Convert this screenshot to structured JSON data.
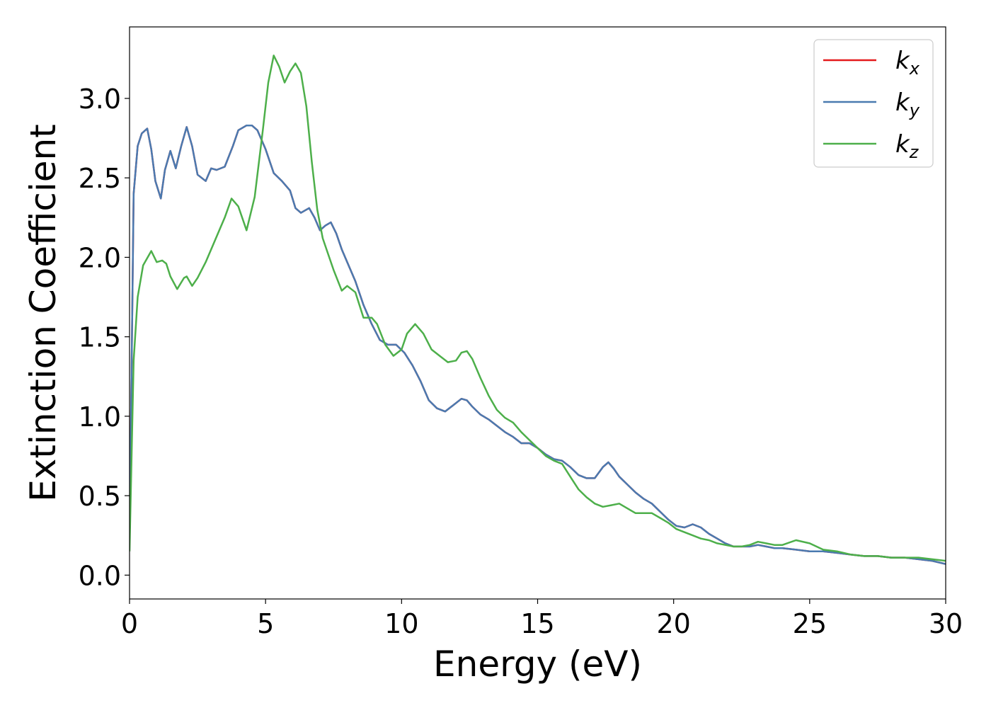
{
  "chart_data": {
    "type": "line",
    "xlabel": "Energy (eV)",
    "ylabel": "Extinction Coefficient",
    "xlim": [
      0,
      30
    ],
    "ylim": [
      -0.15,
      3.45
    ],
    "xticks": [
      0,
      5,
      10,
      15,
      20,
      25,
      30
    ],
    "xtick_labels": [
      "0",
      "5",
      "10",
      "15",
      "20",
      "25",
      "30"
    ],
    "yticks": [
      0.0,
      0.5,
      1.0,
      1.5,
      2.0,
      2.5,
      3.0
    ],
    "ytick_labels": [
      "0.0",
      "0.5",
      "1.0",
      "1.5",
      "2.0",
      "2.5",
      "3.0"
    ],
    "grid": false,
    "legend_position": "top-right",
    "series": [
      {
        "name": "k",
        "sub": "x",
        "color": "#e41a1c",
        "x": [
          0,
          0.15,
          0.3,
          0.45,
          0.65,
          0.8,
          0.95,
          1.15,
          1.3,
          1.5,
          1.7,
          1.9,
          2.1,
          2.3,
          2.5,
          2.8,
          3.0,
          3.2,
          3.5,
          3.8,
          4.0,
          4.3,
          4.5,
          4.7,
          5.0,
          5.3,
          5.6,
          5.9,
          6.1,
          6.3,
          6.6,
          6.8,
          7.0,
          7.2,
          7.4,
          7.6,
          7.8,
          8.0,
          8.3,
          8.6,
          8.9,
          9.2,
          9.5,
          9.8,
          10.1,
          10.4,
          10.7,
          11.0,
          11.3,
          11.6,
          11.9,
          12.2,
          12.4,
          12.6,
          12.9,
          13.2,
          13.5,
          13.8,
          14.1,
          14.4,
          14.7,
          15.0,
          15.3,
          15.6,
          15.9,
          16.2,
          16.5,
          16.8,
          17.1,
          17.4,
          17.6,
          17.8,
          18.0,
          18.3,
          18.6,
          18.9,
          19.2,
          19.5,
          19.8,
          20.1,
          20.4,
          20.7,
          21.0,
          21.3,
          21.6,
          21.9,
          22.2,
          22.5,
          22.8,
          23.1,
          23.4,
          23.7,
          24.0,
          24.5,
          25.0,
          25.5,
          26.0,
          26.5,
          27.0,
          27.5,
          28.0,
          28.5,
          29.0,
          29.5,
          30.0
        ],
        "y": [
          0.2,
          2.4,
          2.7,
          2.78,
          2.81,
          2.68,
          2.48,
          2.37,
          2.55,
          2.67,
          2.56,
          2.7,
          2.82,
          2.7,
          2.52,
          2.48,
          2.56,
          2.55,
          2.57,
          2.7,
          2.8,
          2.83,
          2.83,
          2.8,
          2.68,
          2.53,
          2.48,
          2.42,
          2.31,
          2.28,
          2.31,
          2.25,
          2.17,
          2.2,
          2.22,
          2.15,
          2.05,
          1.97,
          1.85,
          1.7,
          1.58,
          1.48,
          1.45,
          1.45,
          1.4,
          1.32,
          1.22,
          1.1,
          1.05,
          1.03,
          1.07,
          1.11,
          1.1,
          1.06,
          1.01,
          0.98,
          0.94,
          0.9,
          0.87,
          0.83,
          0.83,
          0.8,
          0.76,
          0.73,
          0.72,
          0.68,
          0.63,
          0.61,
          0.61,
          0.68,
          0.71,
          0.67,
          0.62,
          0.57,
          0.52,
          0.48,
          0.45,
          0.4,
          0.35,
          0.31,
          0.3,
          0.32,
          0.3,
          0.26,
          0.23,
          0.2,
          0.18,
          0.18,
          0.18,
          0.19,
          0.18,
          0.17,
          0.17,
          0.16,
          0.15,
          0.15,
          0.14,
          0.13,
          0.12,
          0.12,
          0.11,
          0.11,
          0.1,
          0.09,
          0.07
        ]
      },
      {
        "name": "k",
        "sub": "y",
        "color": "#4a7ab0",
        "x": [
          0,
          0.15,
          0.3,
          0.45,
          0.65,
          0.8,
          0.95,
          1.15,
          1.3,
          1.5,
          1.7,
          1.9,
          2.1,
          2.3,
          2.5,
          2.8,
          3.0,
          3.2,
          3.5,
          3.8,
          4.0,
          4.3,
          4.5,
          4.7,
          5.0,
          5.3,
          5.6,
          5.9,
          6.1,
          6.3,
          6.6,
          6.8,
          7.0,
          7.2,
          7.4,
          7.6,
          7.8,
          8.0,
          8.3,
          8.6,
          8.9,
          9.2,
          9.5,
          9.8,
          10.1,
          10.4,
          10.7,
          11.0,
          11.3,
          11.6,
          11.9,
          12.2,
          12.4,
          12.6,
          12.9,
          13.2,
          13.5,
          13.8,
          14.1,
          14.4,
          14.7,
          15.0,
          15.3,
          15.6,
          15.9,
          16.2,
          16.5,
          16.8,
          17.1,
          17.4,
          17.6,
          17.8,
          18.0,
          18.3,
          18.6,
          18.9,
          19.2,
          19.5,
          19.8,
          20.1,
          20.4,
          20.7,
          21.0,
          21.3,
          21.6,
          21.9,
          22.2,
          22.5,
          22.8,
          23.1,
          23.4,
          23.7,
          24.0,
          24.5,
          25.0,
          25.5,
          26.0,
          26.5,
          27.0,
          27.5,
          28.0,
          28.5,
          29.0,
          29.5,
          30.0
        ],
        "y": [
          0.2,
          2.4,
          2.7,
          2.78,
          2.81,
          2.68,
          2.48,
          2.37,
          2.55,
          2.67,
          2.56,
          2.7,
          2.82,
          2.7,
          2.52,
          2.48,
          2.56,
          2.55,
          2.57,
          2.7,
          2.8,
          2.83,
          2.83,
          2.8,
          2.68,
          2.53,
          2.48,
          2.42,
          2.31,
          2.28,
          2.31,
          2.25,
          2.17,
          2.2,
          2.22,
          2.15,
          2.05,
          1.97,
          1.85,
          1.7,
          1.58,
          1.48,
          1.45,
          1.45,
          1.4,
          1.32,
          1.22,
          1.1,
          1.05,
          1.03,
          1.07,
          1.11,
          1.1,
          1.06,
          1.01,
          0.98,
          0.94,
          0.9,
          0.87,
          0.83,
          0.83,
          0.8,
          0.76,
          0.73,
          0.72,
          0.68,
          0.63,
          0.61,
          0.61,
          0.68,
          0.71,
          0.67,
          0.62,
          0.57,
          0.52,
          0.48,
          0.45,
          0.4,
          0.35,
          0.31,
          0.3,
          0.32,
          0.3,
          0.26,
          0.23,
          0.2,
          0.18,
          0.18,
          0.18,
          0.19,
          0.18,
          0.17,
          0.17,
          0.16,
          0.15,
          0.15,
          0.14,
          0.13,
          0.12,
          0.12,
          0.11,
          0.11,
          0.1,
          0.09,
          0.07
        ]
      },
      {
        "name": "k",
        "sub": "z",
        "color": "#4daf4a",
        "x": [
          0,
          0.15,
          0.3,
          0.5,
          0.8,
          1.0,
          1.2,
          1.35,
          1.5,
          1.75,
          2.0,
          2.1,
          2.3,
          2.5,
          2.8,
          3.0,
          3.3,
          3.5,
          3.75,
          4.0,
          4.3,
          4.6,
          4.9,
          5.1,
          5.3,
          5.5,
          5.7,
          5.9,
          6.1,
          6.3,
          6.5,
          6.7,
          6.9,
          7.1,
          7.3,
          7.5,
          7.8,
          8.0,
          8.3,
          8.6,
          8.9,
          9.1,
          9.4,
          9.7,
          10.0,
          10.2,
          10.5,
          10.8,
          11.1,
          11.4,
          11.7,
          12.0,
          12.2,
          12.4,
          12.6,
          12.9,
          13.2,
          13.5,
          13.8,
          14.1,
          14.4,
          14.7,
          15.0,
          15.3,
          15.6,
          15.9,
          16.2,
          16.5,
          16.8,
          17.1,
          17.4,
          17.7,
          18.0,
          18.3,
          18.6,
          18.9,
          19.2,
          19.5,
          19.8,
          20.1,
          20.4,
          20.7,
          21.0,
          21.3,
          21.6,
          21.9,
          22.2,
          22.5,
          22.8,
          23.1,
          23.4,
          23.7,
          24.0,
          24.5,
          25.0,
          25.5,
          26.0,
          26.5,
          27.0,
          27.5,
          28.0,
          28.5,
          29.0,
          29.5,
          30.0
        ],
        "y": [
          0.15,
          1.35,
          1.75,
          1.95,
          2.04,
          1.97,
          1.98,
          1.96,
          1.88,
          1.8,
          1.87,
          1.88,
          1.82,
          1.87,
          1.97,
          2.05,
          2.17,
          2.25,
          2.37,
          2.32,
          2.17,
          2.38,
          2.8,
          3.1,
          3.27,
          3.2,
          3.1,
          3.17,
          3.22,
          3.16,
          2.95,
          2.6,
          2.3,
          2.12,
          2.02,
          1.92,
          1.79,
          1.82,
          1.78,
          1.62,
          1.62,
          1.58,
          1.45,
          1.38,
          1.42,
          1.52,
          1.58,
          1.52,
          1.42,
          1.38,
          1.34,
          1.35,
          1.4,
          1.41,
          1.36,
          1.24,
          1.13,
          1.04,
          0.99,
          0.96,
          0.9,
          0.85,
          0.8,
          0.75,
          0.72,
          0.7,
          0.62,
          0.54,
          0.49,
          0.45,
          0.43,
          0.44,
          0.45,
          0.42,
          0.39,
          0.39,
          0.39,
          0.36,
          0.33,
          0.29,
          0.27,
          0.25,
          0.23,
          0.22,
          0.2,
          0.19,
          0.18,
          0.18,
          0.19,
          0.21,
          0.2,
          0.19,
          0.19,
          0.22,
          0.2,
          0.16,
          0.15,
          0.13,
          0.12,
          0.12,
          0.11,
          0.11,
          0.11,
          0.1,
          0.09
        ]
      }
    ]
  }
}
